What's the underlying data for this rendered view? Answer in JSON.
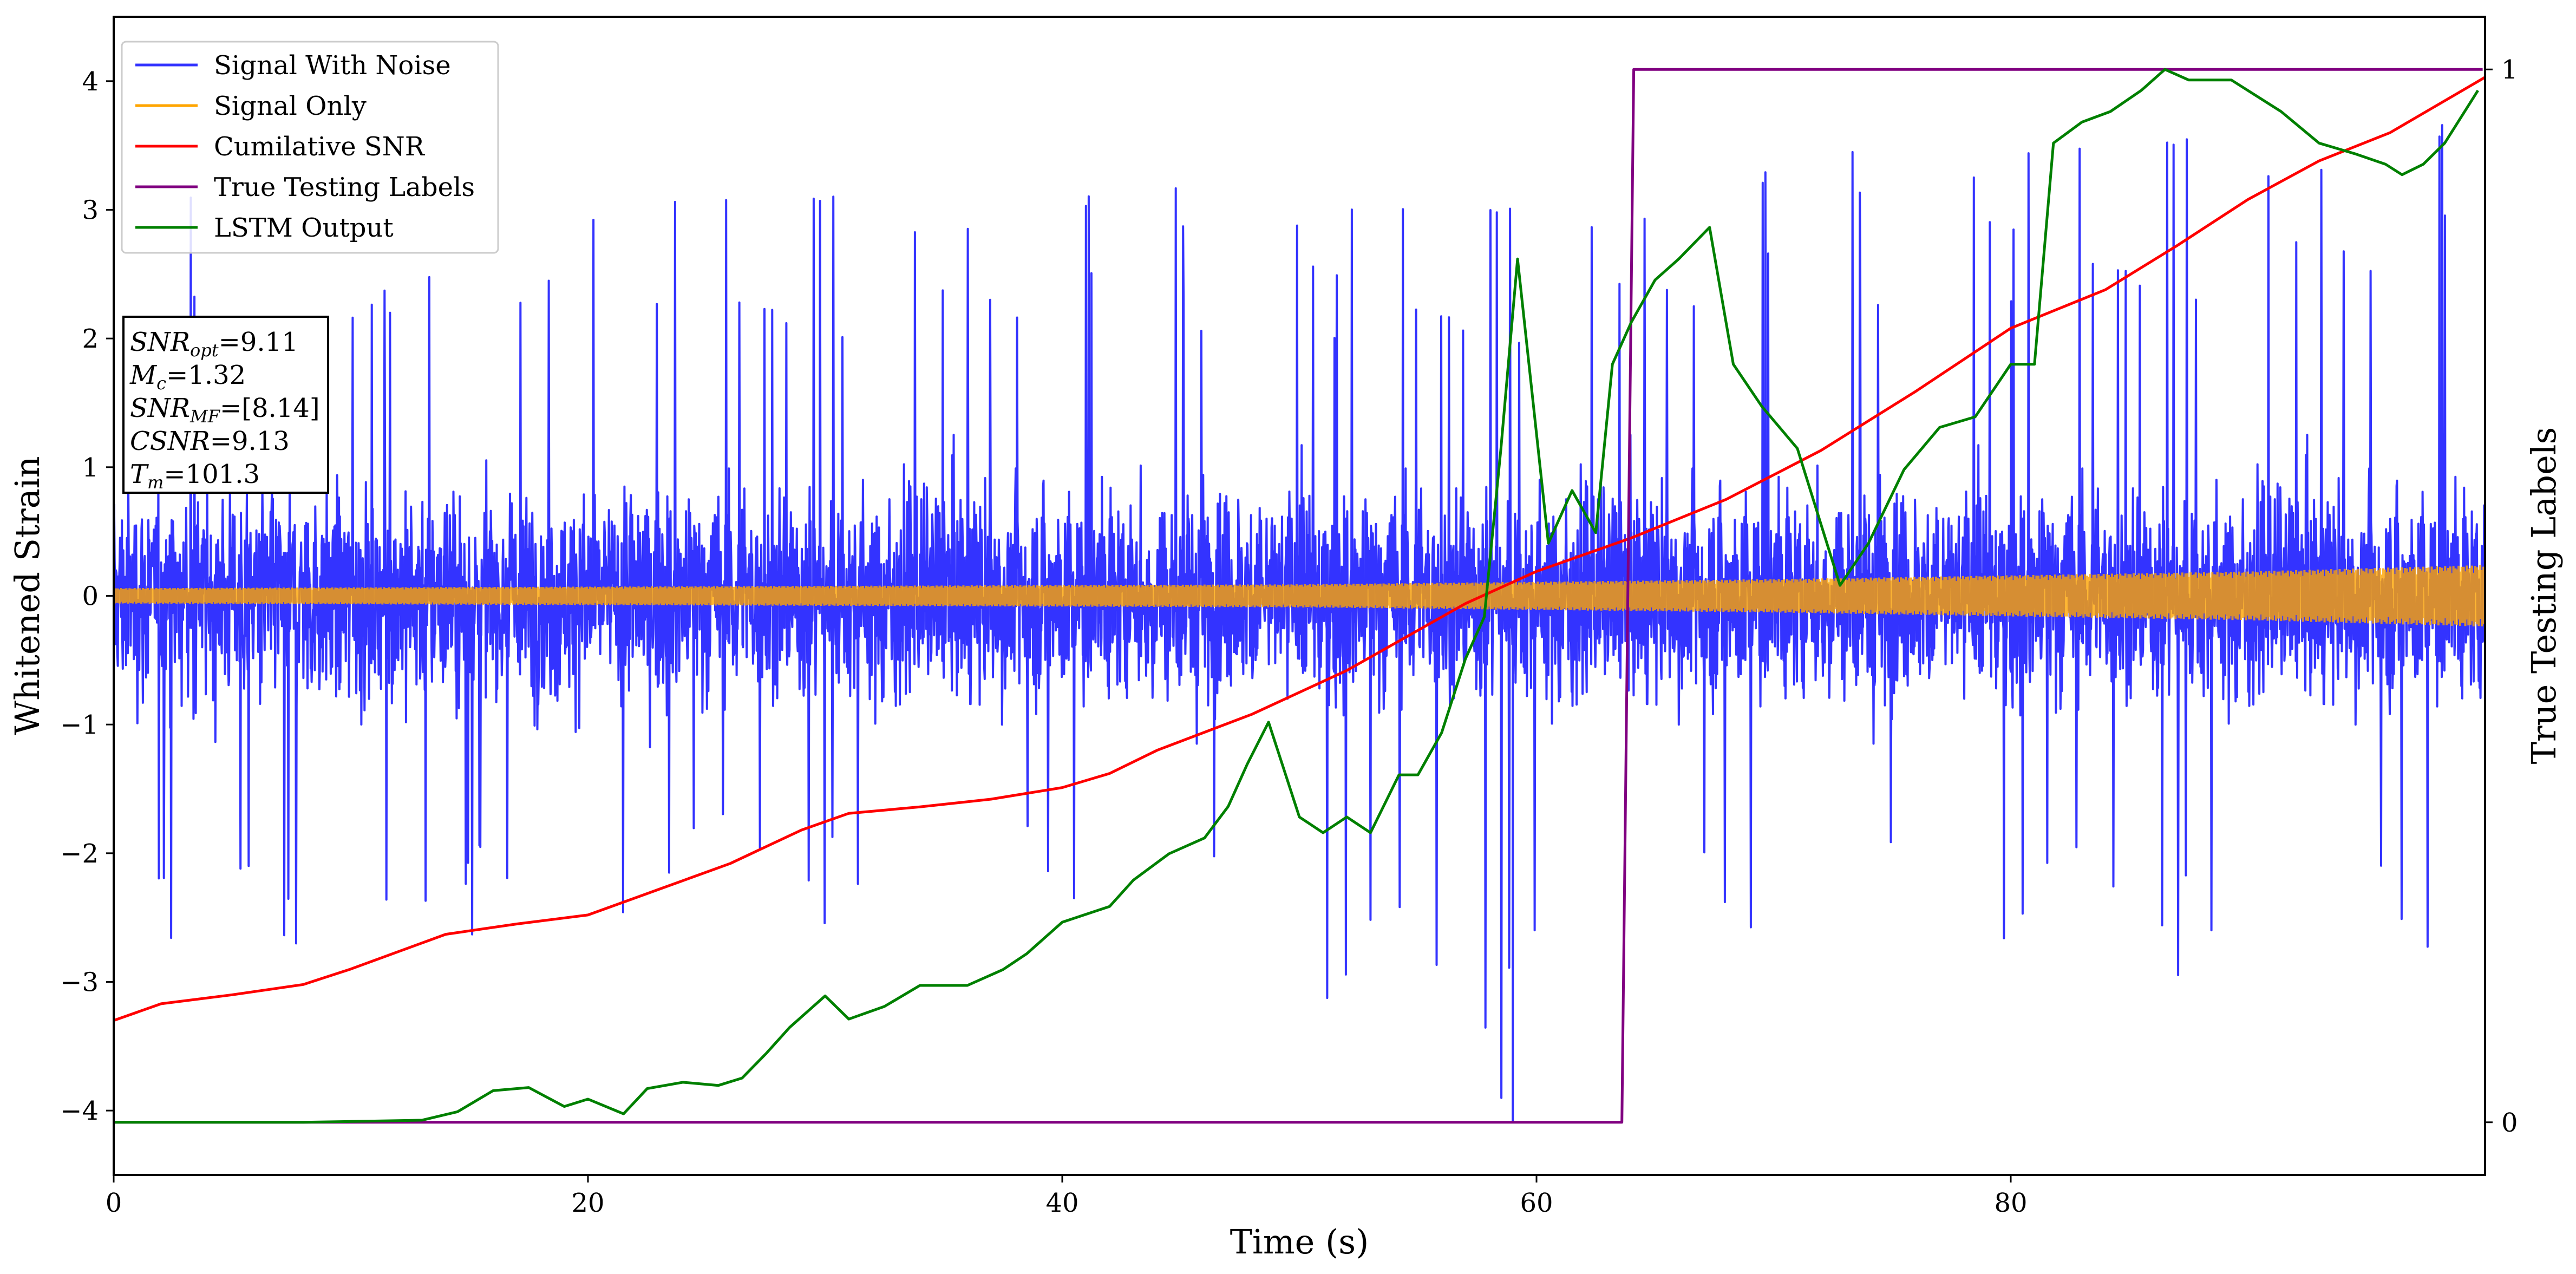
{
  "chart_data": {
    "type": "line",
    "xlabel": "Time (s)",
    "ylabel": "Whitened Strain",
    "y2label": "True Testing Labels",
    "xlim": [
      0,
      100
    ],
    "ylim": [
      -4.5,
      4.5
    ],
    "y2lim": [
      -0.05,
      1.05
    ],
    "xticks": [
      "0",
      "20",
      "40",
      "60",
      "80"
    ],
    "yticks": [
      "−4",
      "−3",
      "−2",
      "−1",
      "0",
      "1",
      "2",
      "3",
      "4"
    ],
    "y2ticks": [
      "0",
      "1"
    ],
    "grid": false,
    "legend_position": "top-left",
    "legend": [
      {
        "label": "Signal With Noise",
        "color": "#3333ff"
      },
      {
        "label": "Signal Only",
        "color": "#ffa500"
      },
      {
        "label": "Cumilative SNR",
        "color": "#ff0000"
      },
      {
        "label": "True Testing Labels",
        "color": "#800080"
      },
      {
        "label": "LSTM Output",
        "color": "#008000"
      }
    ],
    "annotation": [
      {
        "sym": "SNR",
        "sub": "opt",
        "value": "=9.11"
      },
      {
        "sym": "M",
        "sub": "c",
        "value": "=1.32"
      },
      {
        "sym": "SNR",
        "sub": "MF",
        "value": "=[8.14]"
      },
      {
        "sym": "CSNR",
        "sub": "",
        "value": "=9.13"
      },
      {
        "sym": "T",
        "sub": "m",
        "value": "=101.3"
      }
    ],
    "series": [
      {
        "name": "Signal With Noise",
        "axis": "left",
        "color": "#3333ff",
        "style": "dense noise",
        "envelope": {
          "x": [
            0,
            20,
            40,
            59,
            60,
            80,
            100
          ],
          "lo": [
            -2.8,
            -2.6,
            -2.7,
            -4.1,
            -3.0,
            -3.0,
            -3.2
          ],
          "hi": [
            3.1,
            3.3,
            3.3,
            3.2,
            3.3,
            3.7,
            3.9
          ]
        }
      },
      {
        "name": "Signal Only",
        "axis": "left",
        "color": "#ffa500",
        "style": "oscillation",
        "amplitude": {
          "x": [
            0,
            50,
            70,
            90,
            100
          ],
          "a": [
            0.06,
            0.09,
            0.13,
            0.19,
            0.24
          ]
        }
      },
      {
        "name": "Cumilative SNR",
        "axis": "left",
        "color": "#ff0000",
        "x": [
          0,
          2,
          5,
          8,
          10,
          14,
          17,
          20,
          23,
          26,
          29,
          31,
          34,
          37,
          40,
          42,
          44,
          48,
          52,
          57,
          60,
          64,
          68,
          72,
          76,
          80,
          84,
          87,
          90,
          93,
          96,
          100
        ],
        "y": [
          -3.3,
          -3.17,
          -3.1,
          -3.02,
          -2.9,
          -2.63,
          -2.55,
          -2.48,
          -2.28,
          -2.08,
          -1.82,
          -1.69,
          -1.64,
          -1.58,
          -1.49,
          -1.38,
          -1.2,
          -0.92,
          -0.58,
          -0.06,
          0.19,
          0.45,
          0.75,
          1.13,
          1.59,
          2.08,
          2.38,
          2.72,
          3.08,
          3.38,
          3.6,
          4.03
        ]
      },
      {
        "name": "True Testing Labels",
        "axis": "right",
        "color": "#800080",
        "x": [
          0,
          63.6,
          64.1,
          99.9
        ],
        "y": [
          0,
          0,
          1,
          1
        ]
      },
      {
        "name": "LSTM Output",
        "axis": "right",
        "color": "#008000",
        "x": [
          0,
          8,
          13,
          14.5,
          16,
          17.5,
          19,
          20,
          21.5,
          22.5,
          24,
          25.5,
          26.5,
          27.5,
          28.5,
          30,
          31,
          32.5,
          34,
          36,
          37.5,
          38.5,
          40,
          42,
          43,
          44.5,
          46,
          47,
          47.8,
          48.7,
          50,
          51,
          52,
          53,
          54.2,
          55,
          56,
          57,
          57.8,
          58.5,
          59.2,
          60.5,
          61.5,
          62.5,
          63.2,
          64,
          65,
          66,
          67.3,
          68.3,
          69.5,
          71,
          72.8,
          74,
          75.5,
          77,
          78.5,
          80,
          81,
          81.8,
          83,
          84.2,
          85.5,
          86.5,
          87.5,
          89.3,
          91.4,
          93,
          94.5,
          95.8,
          96.5,
          97.4,
          98.3,
          99.7
        ],
        "y": [
          0,
          0,
          0.002,
          0.01,
          0.03,
          0.033,
          0.015,
          0.022,
          0.008,
          0.032,
          0.038,
          0.035,
          0.042,
          0.065,
          0.09,
          0.12,
          0.098,
          0.11,
          0.13,
          0.13,
          0.145,
          0.16,
          0.19,
          0.205,
          0.23,
          0.255,
          0.27,
          0.3,
          0.34,
          0.38,
          0.29,
          0.275,
          0.29,
          0.275,
          0.33,
          0.33,
          0.37,
          0.44,
          0.48,
          0.64,
          0.82,
          0.55,
          0.6,
          0.56,
          0.72,
          0.76,
          0.8,
          0.82,
          0.85,
          0.72,
          0.68,
          0.64,
          0.51,
          0.55,
          0.62,
          0.66,
          0.67,
          0.72,
          0.72,
          0.93,
          0.95,
          0.96,
          0.98,
          1.0,
          0.99,
          0.99,
          0.96,
          0.93,
          0.92,
          0.91,
          0.9,
          0.91,
          0.93,
          0.98
        ]
      }
    ]
  }
}
